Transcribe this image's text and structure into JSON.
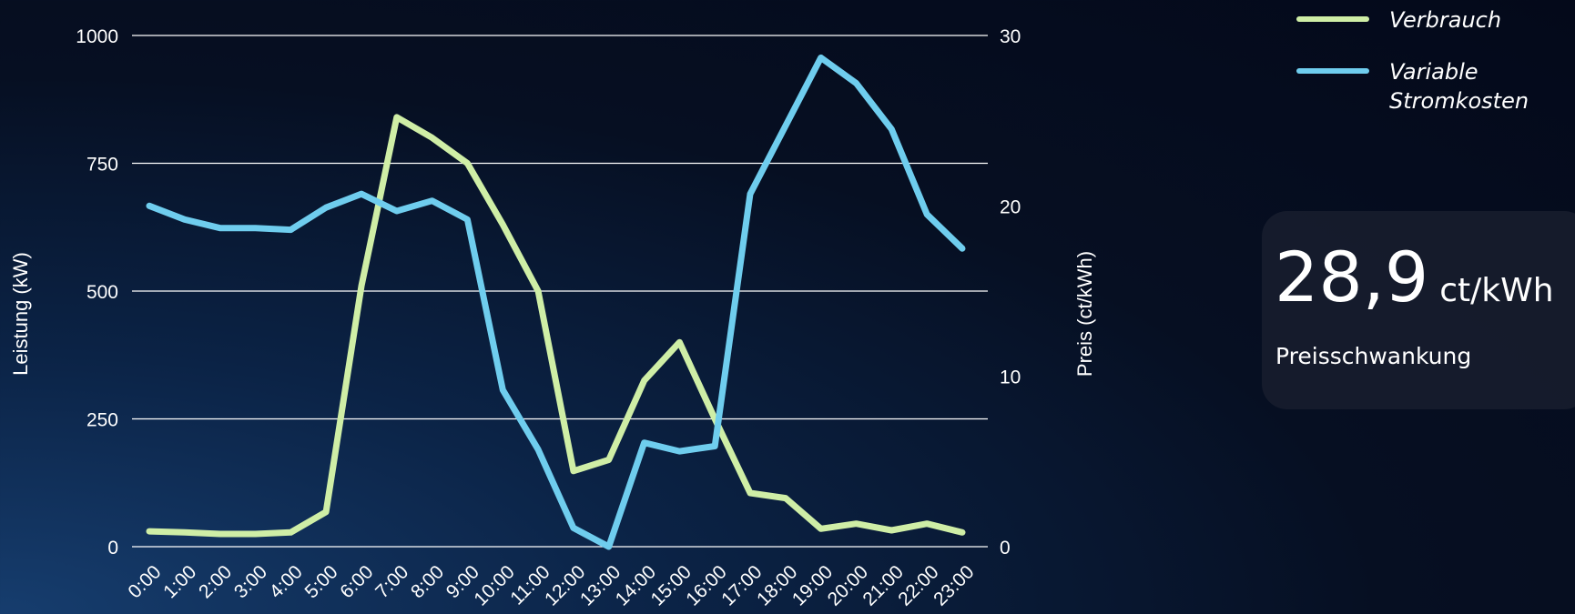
{
  "chart_data": {
    "type": "line",
    "x": [
      "0:00",
      "1:00",
      "2:00",
      "3:00",
      "4:00",
      "5:00",
      "6:00",
      "7:00",
      "8:00",
      "9:00",
      "10:00",
      "11:00",
      "12:00",
      "13:00",
      "14:00",
      "15:00",
      "16:00",
      "17:00",
      "18:00",
      "19:00",
      "20:00",
      "21:00",
      "22:00",
      "23:00"
    ],
    "ylabel": "Leistung (kW)",
    "y2label": "Preis (ct/kWh)",
    "ylim": [
      0,
      1000
    ],
    "y2lim": [
      0,
      30
    ],
    "yticks": [
      0,
      250,
      500,
      750,
      1000
    ],
    "y2ticks": [
      0,
      10,
      20,
      30
    ],
    "grid": true,
    "legend_position": "top-right",
    "series": [
      {
        "name": "Verbrauch",
        "axis": "left",
        "color": "#cfeea6",
        "values": [
          30,
          28,
          25,
          25,
          28,
          68,
          510,
          840,
          800,
          750,
          630,
          500,
          148,
          170,
          325,
          400,
          250,
          105,
          95,
          35,
          45,
          32,
          45,
          28
        ]
      },
      {
        "name": "Variable Stromkosten",
        "axis": "right",
        "color": "#6fcdee",
        "values": [
          20.0,
          19.2,
          18.7,
          18.7,
          18.6,
          19.9,
          20.7,
          19.7,
          20.3,
          19.2,
          9.2,
          5.7,
          1.1,
          0.0,
          6.1,
          5.6,
          5.9,
          20.7,
          24.7,
          28.7,
          27.2,
          24.5,
          19.5,
          17.5
        ]
      }
    ]
  },
  "legend": {
    "items": [
      {
        "label": "Verbrauch",
        "color": "#cfeea6"
      },
      {
        "label": "Variable Stromkosten",
        "color": "#6fcdee"
      }
    ]
  },
  "stat": {
    "value": "28,9",
    "unit": "ct/kWh",
    "label": "Preisschwankung"
  }
}
